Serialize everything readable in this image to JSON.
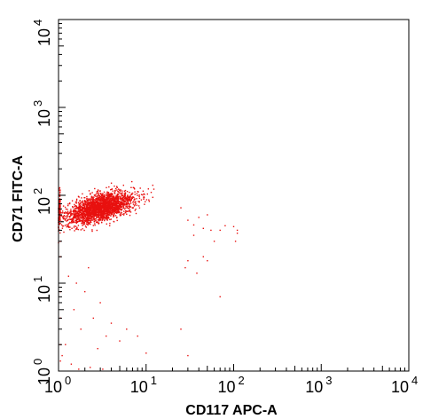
{
  "chart_data": {
    "type": "scatter",
    "xlabel": "CD117 APC-A",
    "ylabel": "CD71 FITC-A",
    "x_scale": "log",
    "y_scale": "log",
    "xlim": [
      1,
      10000
    ],
    "ylim": [
      1,
      10000
    ],
    "x_ticks": [
      {
        "base": "10",
        "exp": "0"
      },
      {
        "base": "10",
        "exp": "1"
      },
      {
        "base": "10",
        "exp": "2"
      },
      {
        "base": "10",
        "exp": "3"
      },
      {
        "base": "10",
        "exp": "4"
      }
    ],
    "y_ticks": [
      {
        "base": "10",
        "exp": "0"
      },
      {
        "base": "10",
        "exp": "1"
      },
      {
        "base": "10",
        "exp": "2"
      },
      {
        "base": "10",
        "exp": "3"
      },
      {
        "base": "10",
        "exp": "4"
      }
    ],
    "grid": false,
    "point_color": "#e8110f",
    "population": {
      "main_cluster_center": [
        3.0,
        72
      ],
      "main_cluster_count": 2500
    },
    "outliers": [
      [
        25,
        72
      ],
      [
        30,
        52
      ],
      [
        35,
        46
      ],
      [
        40,
        56
      ],
      [
        45,
        42
      ],
      [
        50,
        60
      ],
      [
        55,
        40
      ],
      [
        60,
        30
      ],
      [
        70,
        40
      ],
      [
        80,
        45
      ],
      [
        100,
        44
      ],
      [
        110,
        37
      ],
      [
        110,
        40
      ],
      [
        105,
        30
      ],
      [
        35,
        35
      ],
      [
        28,
        15
      ],
      [
        30,
        18
      ],
      [
        38,
        13
      ],
      [
        45,
        20
      ],
      [
        50,
        18
      ],
      [
        70,
        7
      ],
      [
        25,
        3
      ],
      [
        30,
        1.5
      ],
      [
        1.5,
        5
      ],
      [
        1.8,
        3
      ],
      [
        2,
        8
      ],
      [
        2.5,
        4
      ],
      [
        3,
        6
      ],
      [
        3.5,
        2.5
      ],
      [
        4,
        3.5
      ],
      [
        1.2,
        2
      ],
      [
        5,
        2.2
      ],
      [
        6,
        3
      ],
      [
        1.3,
        12
      ],
      [
        1.6,
        10
      ],
      [
        2.2,
        15
      ],
      [
        1.1,
        1.5
      ],
      [
        1.4,
        1.2
      ],
      [
        2.8,
        1.8
      ],
      [
        8,
        2.5
      ],
      [
        10,
        1.6
      ],
      [
        1.05,
        30
      ],
      [
        1.05,
        20
      ],
      [
        1.05,
        8
      ],
      [
        1.05,
        4
      ],
      [
        1.05,
        2
      ],
      [
        1.05,
        1.3
      ],
      [
        1.7,
        1.05
      ],
      [
        2.3,
        1.1
      ],
      [
        3.2,
        1.05
      ]
    ]
  }
}
